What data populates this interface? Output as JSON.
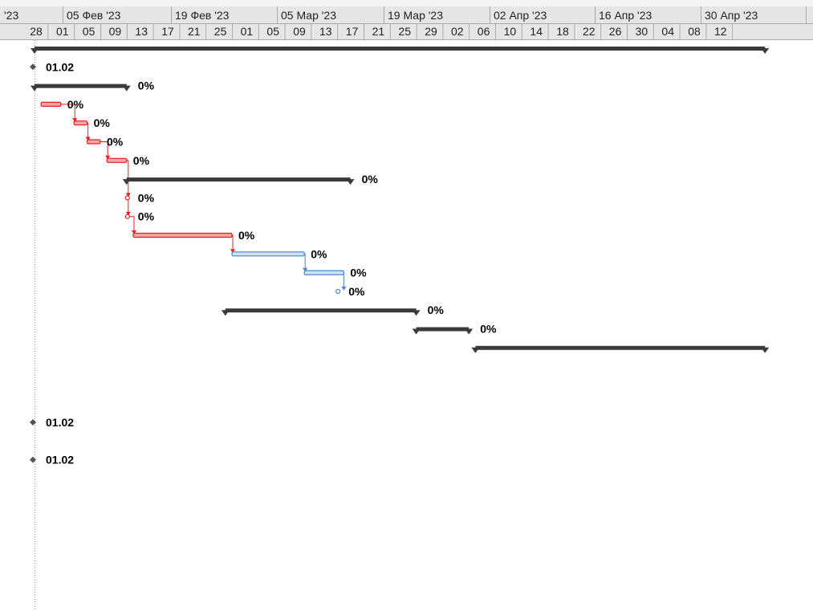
{
  "timescale": {
    "major_labels": [
      "'23",
      "05 Фев '23",
      "19 Фев '23",
      "05 Мар '23",
      "19 Мар '23",
      "02 Апр '23",
      "16 Апр '23",
      "30 Апр '23"
    ],
    "minor_labels": [
      "28",
      "01",
      "05",
      "09",
      "13",
      "17",
      "21",
      "25",
      "01",
      "05",
      "09",
      "13",
      "17",
      "21",
      "25",
      "29",
      "02",
      "06",
      "10",
      "14",
      "18",
      "22",
      "26",
      "30",
      "04",
      "08",
      "12"
    ]
  },
  "colors": {
    "summary": "#3a3a3a",
    "critical_fill": "#f4a6a6",
    "critical_line": "#e02020",
    "normal_fill": "#cfe3f6",
    "normal_line": "#4a86c8",
    "link_critical": "#e02020",
    "link_normal": "#4a86c8",
    "milestone": "#555555"
  },
  "tasks": [
    {
      "name": "project-summary",
      "kind": "summary",
      "start": "2023-01-30",
      "finish": "2023-05-20"
    },
    {
      "name": "milestone-1",
      "kind": "milestone",
      "date": "2023-01-30",
      "label": "01.02"
    },
    {
      "name": "summary-phase-1",
      "kind": "summary",
      "start": "2023-01-30",
      "finish": "2023-02-12",
      "label": "0%"
    },
    {
      "name": "task-1",
      "kind": "critical",
      "start": "2023-01-31",
      "finish": "2023-02-02",
      "label": "0%"
    },
    {
      "name": "task-2",
      "kind": "critical",
      "start": "2023-02-05",
      "finish": "2023-02-06",
      "label": "0%"
    },
    {
      "name": "task-3",
      "kind": "critical",
      "start": "2023-02-07",
      "finish": "2023-02-08",
      "label": "0%"
    },
    {
      "name": "task-4",
      "kind": "critical",
      "start": "2023-02-10",
      "finish": "2023-02-12",
      "label": "0%"
    },
    {
      "name": "summary-phase-2",
      "kind": "summary",
      "start": "2023-02-13",
      "finish": "2023-03-18",
      "label": "0%"
    },
    {
      "name": "task-5",
      "kind": "critical-point",
      "date": "2023-02-13",
      "label": "0%"
    },
    {
      "name": "task-6",
      "kind": "critical-point",
      "date": "2023-02-13",
      "label": "0%"
    },
    {
      "name": "task-7",
      "kind": "critical",
      "start": "2023-02-14",
      "finish": "2023-02-28",
      "label": "0%"
    },
    {
      "name": "task-8",
      "kind": "normal",
      "start": "2023-03-01",
      "finish": "2023-03-11",
      "label": "0%"
    },
    {
      "name": "task-9",
      "kind": "normal",
      "start": "2023-03-12",
      "finish": "2023-03-17",
      "label": "0%"
    },
    {
      "name": "task-10",
      "kind": "normal-point",
      "date": "2023-03-17",
      "label": "0%"
    },
    {
      "name": "summary-phase-3",
      "kind": "summary",
      "start": "2023-02-28",
      "finish": "2023-03-28",
      "label": "0%"
    },
    {
      "name": "summary-phase-4",
      "kind": "summary",
      "start": "2023-03-29",
      "finish": "2023-04-05",
      "label": "0%"
    },
    {
      "name": "summary-phase-5",
      "kind": "summary",
      "start": "2023-04-07",
      "finish": "2023-05-20"
    },
    {
      "name": "blank-row-1",
      "kind": "blank"
    },
    {
      "name": "blank-row-2",
      "kind": "blank"
    },
    {
      "name": "blank-row-3",
      "kind": "blank"
    },
    {
      "name": "milestone-2",
      "kind": "milestone",
      "date": "2023-01-30",
      "label": "01.02"
    },
    {
      "name": "blank-row-4",
      "kind": "blank"
    },
    {
      "name": "milestone-3",
      "kind": "milestone",
      "date": "2023-01-30",
      "label": "01.02"
    }
  ],
  "links": [
    {
      "from": "task-1",
      "to": "task-2",
      "type": "critical"
    },
    {
      "from": "task-2",
      "to": "task-3",
      "type": "critical"
    },
    {
      "from": "task-3",
      "to": "task-4",
      "type": "critical"
    },
    {
      "from": "task-4",
      "to": "task-5",
      "type": "critical"
    },
    {
      "from": "task-5",
      "to": "task-6",
      "type": "critical"
    },
    {
      "from": "task-6",
      "to": "task-7",
      "type": "critical"
    },
    {
      "from": "task-7",
      "to": "task-8",
      "type": "critical"
    },
    {
      "from": "task-8",
      "to": "task-9",
      "type": "normal"
    },
    {
      "from": "task-9",
      "to": "task-10",
      "type": "normal"
    }
  ]
}
